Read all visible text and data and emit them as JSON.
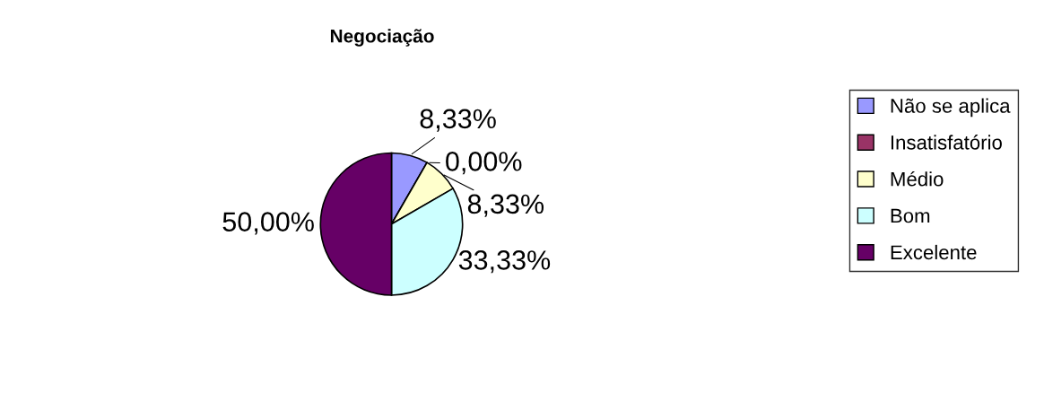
{
  "chart_data": {
    "type": "pie",
    "title": "Negociação",
    "categories": [
      "Não se aplica",
      "Insatisfatório",
      "Médio",
      "Bom",
      "Excelente"
    ],
    "values": [
      8.33,
      0,
      8.33,
      33.33,
      50
    ],
    "value_labels": [
      "8,33%",
      "0,00%",
      "8,33%",
      "33,33%",
      "50,00%"
    ],
    "colors": [
      "#9999ff",
      "#993366",
      "#ffffcc",
      "#ccffff",
      "#660066"
    ],
    "legend": "right"
  }
}
